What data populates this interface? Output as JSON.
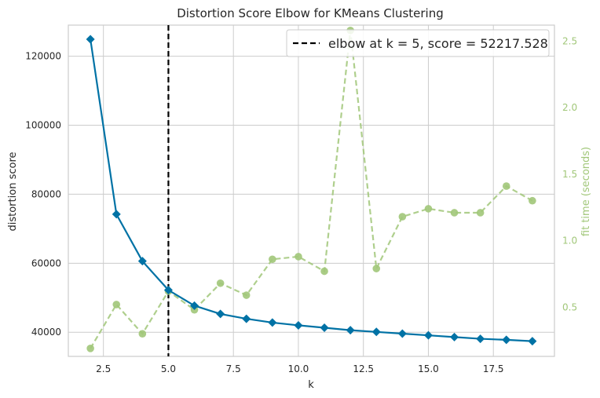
{
  "chart_data": {
    "type": "line",
    "title": "Distortion Score Elbow for KMeans Clustering",
    "xlabel": "k",
    "ylabel": "distortion score",
    "y2label": "fit time (seconds)",
    "xlim": [
      1.15,
      19.85
    ],
    "ylim": [
      33000,
      129000
    ],
    "y2lim": [
      0.13,
      2.62
    ],
    "x_ticks": [
      2.5,
      5.0,
      7.5,
      10.0,
      12.5,
      15.0,
      17.5
    ],
    "x_tick_labels": [
      "2.5",
      "5.0",
      "7.5",
      "10.0",
      "12.5",
      "15.0",
      "17.5"
    ],
    "y_ticks": [
      40000,
      60000,
      80000,
      100000,
      120000
    ],
    "y_tick_labels": [
      "40000",
      "60000",
      "80000",
      "100000",
      "120000"
    ],
    "y2_ticks": [
      0.5,
      1.0,
      1.5,
      2.0,
      2.5
    ],
    "y2_tick_labels": [
      "0.5",
      "1.0",
      "1.5",
      "2.0",
      "2.5"
    ],
    "grid": true,
    "legend_position": "top-right",
    "legend_label": "elbow at k = 5, score = 52217.528",
    "elbow_k": 5,
    "x": [
      2,
      3,
      4,
      5,
      6,
      7,
      8,
      9,
      10,
      11,
      12,
      13,
      14,
      15,
      16,
      17,
      18,
      19
    ],
    "series": [
      {
        "name": "distortion score",
        "axis": "left",
        "color": "#0072a5",
        "marker": "diamond",
        "values": [
          124900,
          74200,
          60600,
          52217.528,
          47700,
          45300,
          43900,
          42800,
          42000,
          41300,
          40600,
          40100,
          39600,
          39100,
          38600,
          38100,
          37800,
          37400
        ]
      },
      {
        "name": "fit time (seconds)",
        "axis": "right",
        "color": "#a1c779",
        "marker": "circle",
        "values": [
          0.19,
          0.52,
          0.3,
          0.62,
          0.48,
          0.68,
          0.59,
          0.86,
          0.88,
          0.77,
          2.58,
          0.79,
          1.18,
          1.24,
          1.21,
          1.21,
          1.41,
          1.3
        ]
      }
    ]
  }
}
